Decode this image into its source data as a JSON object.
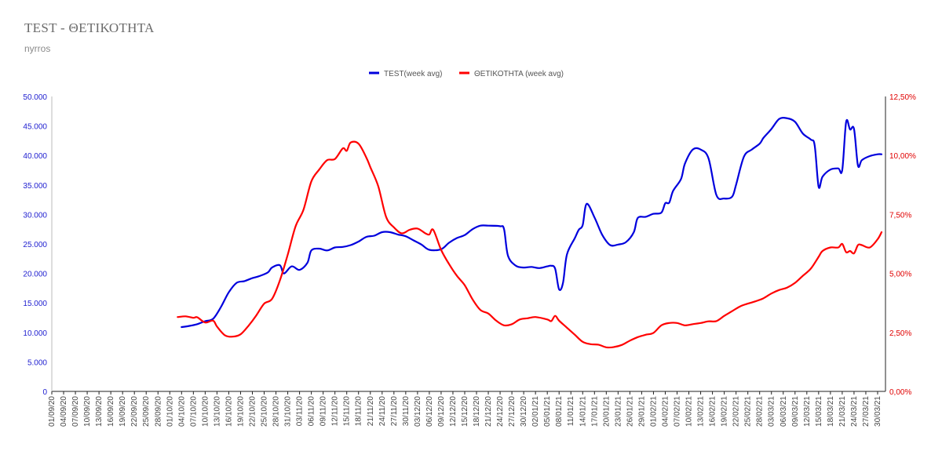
{
  "header": {
    "title": "TEST - ΘΕΤΙΚΟΤΗΤΑ",
    "subtitle": "nyrros"
  },
  "colors": {
    "test": "#0000dd",
    "positivity": "#ff0000",
    "left_axis_text": "#2020d0",
    "right_axis_text": "#e00000"
  },
  "chart_data": {
    "type": "line",
    "legend_position": "top-center",
    "grid": false,
    "x_start": "01/09/20",
    "x_end": "01/04/21",
    "x_tick_labels": [
      "01/09/20",
      "04/09/20",
      "07/09/20",
      "10/09/20",
      "13/09/20",
      "16/09/20",
      "19/09/20",
      "22/09/20",
      "25/09/20",
      "28/09/20",
      "01/10/20",
      "04/10/20",
      "07/10/20",
      "10/10/20",
      "13/10/20",
      "16/10/20",
      "19/10/20",
      "22/10/20",
      "25/10/20",
      "28/10/20",
      "31/10/20",
      "03/11/20",
      "06/11/20",
      "09/11/20",
      "12/11/20",
      "15/11/20",
      "18/11/20",
      "21/11/20",
      "24/11/20",
      "27/11/20",
      "30/11/20",
      "03/12/20",
      "06/12/20",
      "09/12/20",
      "12/12/20",
      "15/12/20",
      "18/12/20",
      "21/12/20",
      "24/12/20",
      "27/12/20",
      "30/12/20",
      "02/01/21",
      "05/01/21",
      "08/01/21",
      "11/01/21",
      "14/01/21",
      "17/01/21",
      "20/01/21",
      "23/01/21",
      "26/01/21",
      "29/01/21",
      "01/02/21",
      "04/02/21",
      "07/02/21",
      "10/02/21",
      "13/02/21",
      "16/02/21",
      "19/02/21",
      "22/02/21",
      "25/02/21",
      "28/02/21",
      "03/03/21",
      "06/03/21",
      "09/03/21",
      "12/03/21",
      "15/03/21",
      "18/03/21",
      "21/03/21",
      "24/03/21",
      "27/03/21",
      "30/03/21"
    ],
    "y_left": {
      "lim": [
        0,
        50000
      ],
      "tick_values": [
        0,
        5000,
        10000,
        15000,
        20000,
        25000,
        30000,
        35000,
        40000,
        45000,
        50000
      ],
      "tick_labels": [
        "0",
        "5.000",
        "10.000",
        "15.000",
        "20.000",
        "25.000",
        "30.000",
        "35.000",
        "40.000",
        "45.000",
        "50.000"
      ]
    },
    "y_right": {
      "lim": [
        0,
        12.5
      ],
      "tick_values": [
        0,
        2.5,
        5,
        7.5,
        10,
        12.5
      ],
      "tick_labels": [
        "0,00%",
        "2,50%",
        "5,00%",
        "7,50%",
        "10,00%",
        "12,50%"
      ]
    },
    "series": [
      {
        "name": "TEST(week avg)",
        "axis": "left",
        "points": [
          [
            "04/10/20",
            10900
          ],
          [
            "06/10/20",
            11100
          ],
          [
            "08/10/20",
            11400
          ],
          [
            "10/10/20",
            11900
          ],
          [
            "12/10/20",
            12300
          ],
          [
            "14/10/20",
            14300
          ],
          [
            "16/10/20",
            16800
          ],
          [
            "18/10/20",
            18400
          ],
          [
            "20/10/20",
            18700
          ],
          [
            "22/10/20",
            19200
          ],
          [
            "24/10/20",
            19600
          ],
          [
            "26/10/20",
            20200
          ],
          [
            "27/10/20",
            21000
          ],
          [
            "29/10/20",
            21400
          ],
          [
            "30/10/20",
            20000
          ],
          [
            "01/11/20",
            21200
          ],
          [
            "03/11/20",
            20600
          ],
          [
            "05/11/20",
            21800
          ],
          [
            "06/11/20",
            23900
          ],
          [
            "08/11/20",
            24200
          ],
          [
            "10/11/20",
            23900
          ],
          [
            "12/11/20",
            24400
          ],
          [
            "14/11/20",
            24500
          ],
          [
            "16/11/20",
            24800
          ],
          [
            "18/11/20",
            25400
          ],
          [
            "20/11/20",
            26200
          ],
          [
            "22/11/20",
            26400
          ],
          [
            "24/11/20",
            27000
          ],
          [
            "26/11/20",
            27000
          ],
          [
            "28/11/20",
            26600
          ],
          [
            "30/11/20",
            26300
          ],
          [
            "02/12/20",
            25600
          ],
          [
            "04/12/20",
            24900
          ],
          [
            "06/12/20",
            24000
          ],
          [
            "09/12/20",
            24100
          ],
          [
            "11/12/20",
            25200
          ],
          [
            "13/12/20",
            26000
          ],
          [
            "15/12/20",
            26500
          ],
          [
            "17/12/20",
            27500
          ],
          [
            "19/12/20",
            28100
          ],
          [
            "21/12/20",
            28100
          ],
          [
            "24/12/20",
            28000
          ],
          [
            "25/12/20",
            27500
          ],
          [
            "26/12/20",
            23000
          ],
          [
            "28/12/20",
            21300
          ],
          [
            "30/12/20",
            21000
          ],
          [
            "01/01/21",
            21100
          ],
          [
            "03/01/21",
            20900
          ],
          [
            "05/01/21",
            21200
          ],
          [
            "06/01/21",
            21300
          ],
          [
            "07/01/21",
            20800
          ],
          [
            "08/01/21",
            17300
          ],
          [
            "09/01/21",
            18400
          ],
          [
            "10/01/21",
            23200
          ],
          [
            "12/01/21",
            26000
          ],
          [
            "13/01/21",
            27400
          ],
          [
            "14/01/21",
            28200
          ],
          [
            "15/01/21",
            31800
          ],
          [
            "17/01/21",
            29500
          ],
          [
            "19/01/21",
            26500
          ],
          [
            "21/01/21",
            24800
          ],
          [
            "23/01/21",
            24900
          ],
          [
            "25/01/21",
            25300
          ],
          [
            "27/01/21",
            27000
          ],
          [
            "28/01/21",
            29400
          ],
          [
            "30/01/21",
            29600
          ],
          [
            "01/02/21",
            30100
          ],
          [
            "03/02/21",
            30300
          ],
          [
            "04/02/21",
            31900
          ],
          [
            "05/02/21",
            32000
          ],
          [
            "06/02/21",
            34000
          ],
          [
            "08/02/21",
            36000
          ],
          [
            "09/02/21",
            38600
          ],
          [
            "11/02/21",
            41000
          ],
          [
            "13/02/21",
            41000
          ],
          [
            "15/02/21",
            39500
          ],
          [
            "17/02/21",
            33300
          ],
          [
            "19/02/21",
            32700
          ],
          [
            "21/02/21",
            33000
          ],
          [
            "22/02/21",
            35000
          ],
          [
            "24/02/21",
            39800
          ],
          [
            "26/02/21",
            41000
          ],
          [
            "28/02/21",
            42000
          ],
          [
            "01/03/21",
            43000
          ],
          [
            "03/03/21",
            44500
          ],
          [
            "05/03/21",
            46200
          ],
          [
            "07/03/21",
            46300
          ],
          [
            "09/03/21",
            45700
          ],
          [
            "11/03/21",
            43700
          ],
          [
            "13/03/21",
            42700
          ],
          [
            "14/03/21",
            41700
          ],
          [
            "15/03/21",
            34700
          ],
          [
            "16/03/21",
            36400
          ],
          [
            "18/03/21",
            37600
          ],
          [
            "20/03/21",
            37800
          ],
          [
            "21/03/21",
            37500
          ],
          [
            "22/03/21",
            45700
          ],
          [
            "23/03/21",
            44400
          ],
          [
            "24/03/21",
            44500
          ],
          [
            "25/03/21",
            38300
          ],
          [
            "26/03/21",
            39200
          ],
          [
            "28/03/21",
            39900
          ],
          [
            "30/03/21",
            40200
          ],
          [
            "31/03/21",
            40200
          ]
        ]
      },
      {
        "name": "ΘΕΤΙΚΟΤΗΤΑ (week avg)",
        "axis": "right",
        "points": [
          [
            "03/10/20",
            3.15
          ],
          [
            "05/10/20",
            3.18
          ],
          [
            "07/10/20",
            3.12
          ],
          [
            "08/10/20",
            3.14
          ],
          [
            "10/10/20",
            2.92
          ],
          [
            "12/10/20",
            3.0
          ],
          [
            "13/10/20",
            2.75
          ],
          [
            "15/10/20",
            2.38
          ],
          [
            "17/10/20",
            2.32
          ],
          [
            "19/10/20",
            2.42
          ],
          [
            "21/10/20",
            2.78
          ],
          [
            "23/10/20",
            3.22
          ],
          [
            "25/10/20",
            3.72
          ],
          [
            "27/10/20",
            3.92
          ],
          [
            "29/10/20",
            4.7
          ],
          [
            "31/10/20",
            5.8
          ],
          [
            "02/11/20",
            7.0
          ],
          [
            "04/11/20",
            7.7
          ],
          [
            "06/11/20",
            8.9
          ],
          [
            "08/11/20",
            9.4
          ],
          [
            "10/11/20",
            9.8
          ],
          [
            "12/11/20",
            9.85
          ],
          [
            "14/11/20",
            10.3
          ],
          [
            "15/11/20",
            10.2
          ],
          [
            "16/11/20",
            10.55
          ],
          [
            "18/11/20",
            10.5
          ],
          [
            "20/11/20",
            9.9
          ],
          [
            "21/11/20",
            9.5
          ],
          [
            "23/11/20",
            8.7
          ],
          [
            "25/11/20",
            7.4
          ],
          [
            "27/11/20",
            6.95
          ],
          [
            "29/11/20",
            6.7
          ],
          [
            "01/12/20",
            6.85
          ],
          [
            "03/12/20",
            6.9
          ],
          [
            "05/12/20",
            6.7
          ],
          [
            "06/12/20",
            6.65
          ],
          [
            "07/12/20",
            6.85
          ],
          [
            "09/12/20",
            6.0
          ],
          [
            "11/12/20",
            5.4
          ],
          [
            "13/12/20",
            4.9
          ],
          [
            "15/12/20",
            4.5
          ],
          [
            "17/12/20",
            3.9
          ],
          [
            "19/12/20",
            3.45
          ],
          [
            "21/12/20",
            3.3
          ],
          [
            "23/12/20",
            3.0
          ],
          [
            "25/12/20",
            2.8
          ],
          [
            "27/12/20",
            2.85
          ],
          [
            "29/12/20",
            3.05
          ],
          [
            "31/12/20",
            3.1
          ],
          [
            "02/01/21",
            3.15
          ],
          [
            "05/01/21",
            3.05
          ],
          [
            "06/01/21",
            2.98
          ],
          [
            "07/01/21",
            3.2
          ],
          [
            "08/01/21",
            3.0
          ],
          [
            "10/01/21",
            2.7
          ],
          [
            "12/01/21",
            2.4
          ],
          [
            "14/01/21",
            2.1
          ],
          [
            "16/01/21",
            2.0
          ],
          [
            "18/01/21",
            1.98
          ],
          [
            "20/01/21",
            1.87
          ],
          [
            "22/01/21",
            1.88
          ],
          [
            "24/01/21",
            1.97
          ],
          [
            "26/01/21",
            2.15
          ],
          [
            "28/01/21",
            2.3
          ],
          [
            "30/01/21",
            2.4
          ],
          [
            "01/02/21",
            2.48
          ],
          [
            "03/02/21",
            2.8
          ],
          [
            "05/02/21",
            2.9
          ],
          [
            "07/02/21",
            2.9
          ],
          [
            "09/02/21",
            2.8
          ],
          [
            "11/02/21",
            2.85
          ],
          [
            "13/02/21",
            2.9
          ],
          [
            "15/02/21",
            2.97
          ],
          [
            "17/02/21",
            2.98
          ],
          [
            "19/02/21",
            3.2
          ],
          [
            "21/02/21",
            3.4
          ],
          [
            "23/02/21",
            3.6
          ],
          [
            "25/02/21",
            3.72
          ],
          [
            "27/02/21",
            3.82
          ],
          [
            "01/03/21",
            3.95
          ],
          [
            "03/03/21",
            4.15
          ],
          [
            "05/03/21",
            4.3
          ],
          [
            "07/03/21",
            4.4
          ],
          [
            "09/03/21",
            4.6
          ],
          [
            "11/03/21",
            4.9
          ],
          [
            "13/03/21",
            5.2
          ],
          [
            "15/03/21",
            5.7
          ],
          [
            "16/03/21",
            5.95
          ],
          [
            "18/03/21",
            6.1
          ],
          [
            "20/03/21",
            6.1
          ],
          [
            "21/03/21",
            6.25
          ],
          [
            "22/03/21",
            5.9
          ],
          [
            "23/03/21",
            5.95
          ],
          [
            "24/03/21",
            5.85
          ],
          [
            "25/03/21",
            6.2
          ],
          [
            "26/03/21",
            6.2
          ],
          [
            "28/03/21",
            6.1
          ],
          [
            "30/03/21",
            6.45
          ],
          [
            "31/03/21",
            6.75
          ]
        ]
      }
    ]
  }
}
